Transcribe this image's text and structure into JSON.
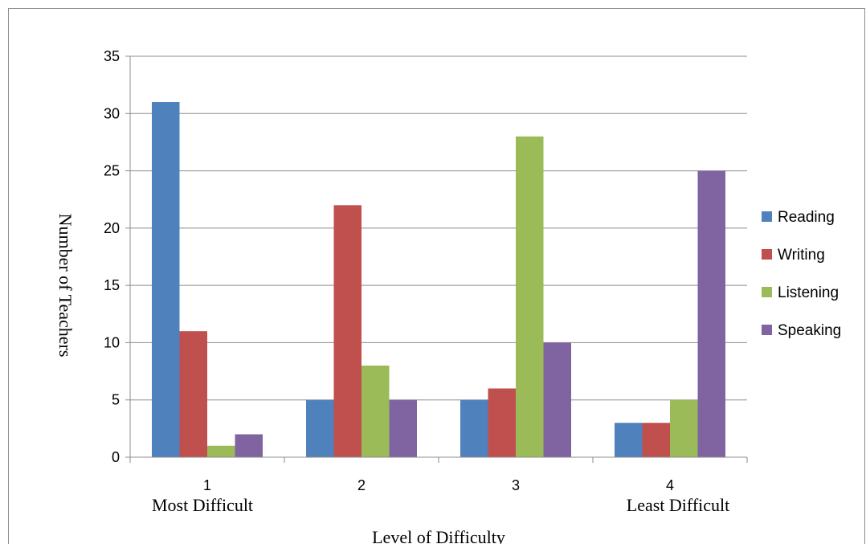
{
  "chart_data": {
    "type": "bar",
    "categories": [
      "1",
      "2",
      "3",
      "4"
    ],
    "category_sublabels": [
      "Most Difficult",
      "",
      "",
      "Least Difficult"
    ],
    "series": [
      {
        "name": "Reading",
        "values": [
          31,
          5,
          5,
          3
        ],
        "color": "#4f81bd"
      },
      {
        "name": "Writing",
        "values": [
          11,
          22,
          6,
          3
        ],
        "color": "#c0504d"
      },
      {
        "name": "Listening",
        "values": [
          1,
          8,
          28,
          5
        ],
        "color": "#9bbb59"
      },
      {
        "name": "Speaking",
        "values": [
          2,
          5,
          10,
          25
        ],
        "color": "#8064a2"
      }
    ],
    "xlabel": "Level of Difficulty",
    "ylabel": "Number  of  Teachers",
    "ylim": [
      0,
      35
    ],
    "yticks": [
      0,
      5,
      10,
      15,
      20,
      25,
      30,
      35
    ],
    "grid": true,
    "legend": "right"
  }
}
